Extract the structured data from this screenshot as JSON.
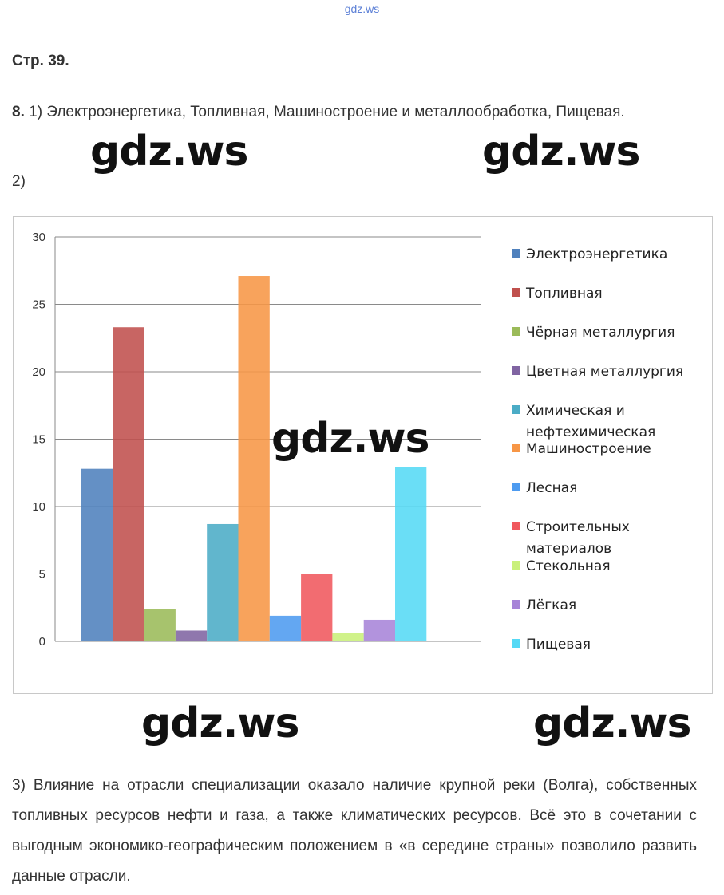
{
  "site_label": "gdz.ws",
  "page_ref": "Стр. 39.",
  "task": {
    "number": "8.",
    "text": " 1) Электроэнергетика, Топливная, Машиностроение и металлообработка, Пищевая."
  },
  "subitem2": "2)",
  "watermark": "gdz.ws",
  "paragraph3": "3) Влияние на отрасли специализации оказало наличие крупной реки (Волга), собственных топливных ресурсов нефти и газа, а также климатических ресурсов. Всё это в сочетании с выгодным экономико-географическим положением в «в середине страны» позволило развить данные отрасли.",
  "chart_data": {
    "type": "bar",
    "title": "",
    "xlabel": "",
    "ylabel": "",
    "ylim": [
      0,
      30
    ],
    "yticks": [
      0,
      5,
      10,
      15,
      20,
      25,
      30
    ],
    "grid": true,
    "legend_position": "right",
    "categories": [
      ""
    ],
    "series": [
      {
        "name": "Электроэнергетика",
        "values": [
          12.8
        ],
        "color": "#4f81bd"
      },
      {
        "name": "Топливная",
        "values": [
          23.3
        ],
        "color": "#c0504d"
      },
      {
        "name": "Чёрная металлургия",
        "values": [
          2.4
        ],
        "color": "#9bbb59"
      },
      {
        "name": "Цветная металлургия",
        "values": [
          0.8
        ],
        "color": "#8064a2"
      },
      {
        "name": "Химическая и нефтехимическая",
        "values": [
          8.7
        ],
        "color": "#4bacc6"
      },
      {
        "name": "Машиностроение",
        "values": [
          27.1
        ],
        "color": "#f79646"
      },
      {
        "name": "Лесная",
        "values": [
          1.9
        ],
        "color": "#4d9bf0"
      },
      {
        "name": "Строительных материалов",
        "values": [
          5.0
        ],
        "color": "#f0585d"
      },
      {
        "name": "Стекольная",
        "values": [
          0.6
        ],
        "color": "#c9f07a"
      },
      {
        "name": "Лёгкая",
        "values": [
          1.6
        ],
        "color": "#a784d8"
      },
      {
        "name": "Пищевая",
        "values": [
          12.9
        ],
        "color": "#55d9f5"
      }
    ]
  }
}
